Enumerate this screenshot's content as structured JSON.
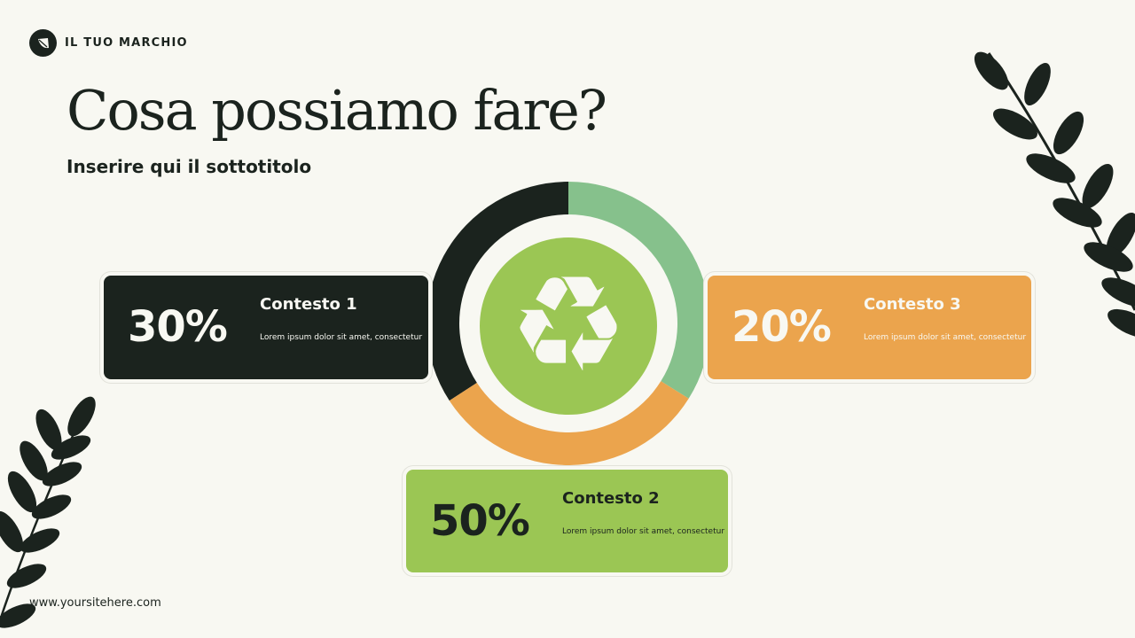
{
  "brand": {
    "name": "IL TUO MARCHIO",
    "icon": "leaf-icon"
  },
  "title": "Cosa possiamo fare?",
  "subtitle": "Inserire qui il sottotitolo",
  "center_icon": "recycle-icon",
  "colors": {
    "background": "#f8f8f2",
    "dark": "#1b231e",
    "light_green": "#86c18c",
    "orange": "#eba44d",
    "green": "#9bc654"
  },
  "segments": [
    {
      "label": "Contesto 1",
      "value": "30%",
      "description": "Lorem ipsum dolor sit amet, consectetur",
      "color": "#1b231e"
    },
    {
      "label": "Contesto 2",
      "value": "50%",
      "description": "Lorem ipsum dolor sit amet, consectetur",
      "color": "#eba44d"
    },
    {
      "label": "Contesto 3",
      "value": "20%",
      "description": "Lorem ipsum dolor sit amet, consectetur",
      "color": "#86c18c"
    }
  ],
  "footer": {
    "website": "www.yoursitehere.com"
  }
}
